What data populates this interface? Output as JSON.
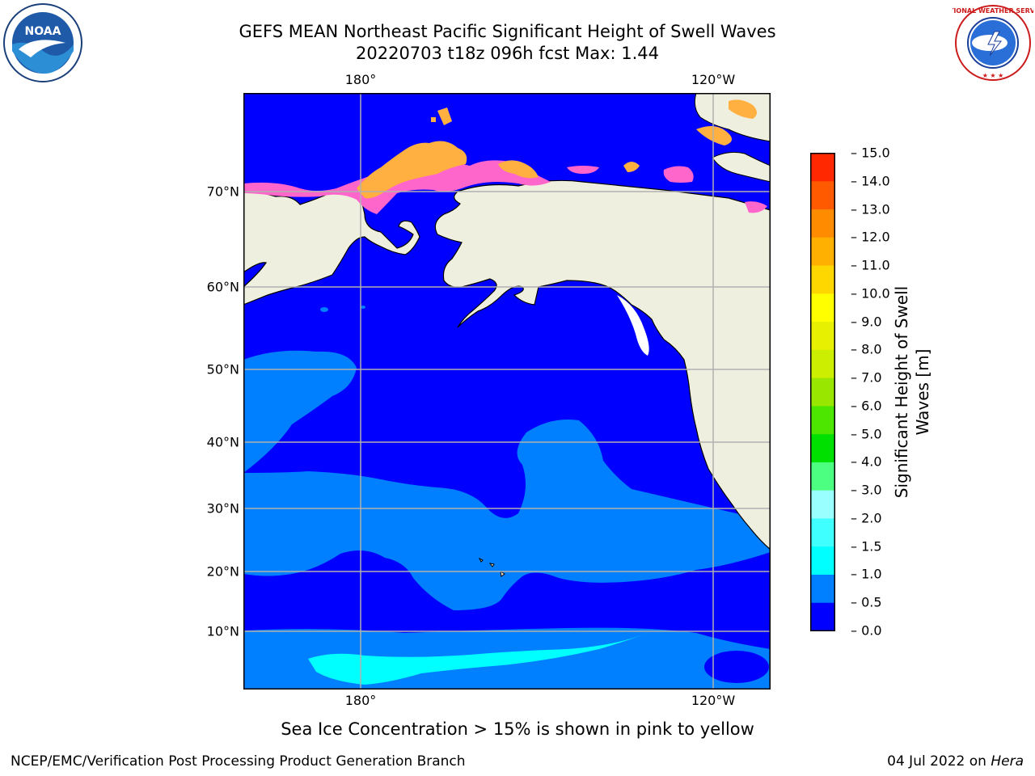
{
  "title_line1": "GEFS MEAN Northeast Pacific Significant Height of Swell Waves",
  "title_line2": "20220703 t18z 096h fcst   Max: 1.44",
  "logos": {
    "left": "NOAA",
    "right": "NATIONAL WEATHER SERVICE"
  },
  "axes": {
    "top": [
      "180°",
      "120°W"
    ],
    "bottom": [
      "180°",
      "120°W"
    ],
    "left": [
      "70°N",
      "60°N",
      "50°N",
      "40°N",
      "30°N",
      "20°N",
      "10°N"
    ]
  },
  "colorbar": {
    "label": "Significant Height of Swell Waves [m]",
    "ticks": [
      "15.0",
      "14.0",
      "13.0",
      "12.0",
      "11.0",
      "10.0",
      "9.0",
      "8.0",
      "7.0",
      "6.0",
      "5.0",
      "4.0",
      "3.0",
      "2.0",
      "1.5",
      "1.0",
      "0.5",
      "0.0"
    ],
    "colors_bottom_to_top": [
      "#0000ff",
      "#0080ff",
      "#00ffff",
      "#40ffff",
      "#99ffff",
      "#4dff80",
      "#00e000",
      "#4ce600",
      "#99e600",
      "#ccee00",
      "#e6f000",
      "#ffff00",
      "#ffd700",
      "#ffb000",
      "#ff8c00",
      "#ff5a00",
      "#ff2800"
    ]
  },
  "subtitle": "Sea Ice Concentration > 15% is shown in pink to yellow",
  "footer_left": "NCEP/EMC/Verification Post Processing Product Generation Branch",
  "footer_date": "04 Jul 2022 on ",
  "footer_host": "Hera",
  "colors": {
    "land": "#efefdf",
    "ocean_low": "#0000ff",
    "ocean_mid": "#0080ff",
    "ocean_high": "#00ffff",
    "ice_pink": "#ff66cc",
    "ice_yellow": "#ffb040",
    "grid": "#b0b0b0"
  }
}
